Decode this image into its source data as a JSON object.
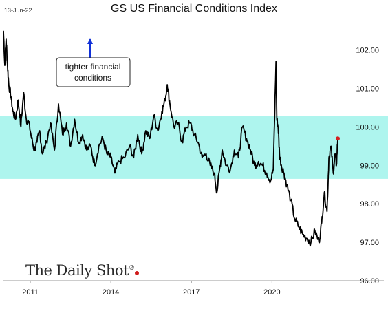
{
  "header": {
    "date": "13-Jun-22",
    "title": "GS US Financial Conditions Index"
  },
  "brand": {
    "text": "The Daily Shot",
    "mark": "®"
  },
  "colors": {
    "line": "#000000",
    "band": "#aef5ee",
    "arrow": "#1030d8",
    "last_point": "#d42020",
    "brand_dot": "#d01c1c"
  },
  "chart_data": {
    "type": "line",
    "title": "GS US Financial Conditions Index",
    "xlabel": "",
    "ylabel": "",
    "x_ticks": [
      "2011",
      "2014",
      "2017",
      "2020"
    ],
    "y_ticks": [
      "96.00",
      "97.00",
      "98.00",
      "99.00",
      "100.00",
      "101.00",
      "102.00"
    ],
    "xlim": [
      2010.0,
      2022.45
    ],
    "ylim": [
      96.0,
      102.55
    ],
    "grid": false,
    "highlight_band": {
      "y_from": 98.65,
      "y_to": 100.28
    },
    "annotation": {
      "text_lines": [
        "tighter financial",
        "conditions"
      ],
      "arrow": "up"
    },
    "last_point": {
      "x": 2022.45,
      "y": 99.7
    },
    "series": [
      {
        "x": [
          2010.0,
          2010.05,
          2010.1,
          2010.15,
          2010.2,
          2010.28,
          2010.35,
          2010.45,
          2010.55,
          2010.65,
          2010.75,
          2010.85,
          2010.95,
          2011.05,
          2011.15,
          2011.25,
          2011.35,
          2011.45,
          2011.6,
          2011.75,
          2011.9,
          2012.05,
          2012.2,
          2012.35,
          2012.5,
          2012.65,
          2012.8,
          2012.95,
          2013.1,
          2013.25,
          2013.4,
          2013.55,
          2013.7,
          2013.85,
          2014.0,
          2014.15,
          2014.3,
          2014.5,
          2014.7,
          2014.85,
          2015.0,
          2015.15,
          2015.3,
          2015.45,
          2015.6,
          2015.75,
          2015.9,
          2016.02,
          2016.1,
          2016.2,
          2016.35,
          2016.5,
          2016.65,
          2016.8,
          2016.95,
          2017.1,
          2017.25,
          2017.4,
          2017.55,
          2017.7,
          2017.85,
          2017.95,
          2018.05,
          2018.15,
          2018.3,
          2018.45,
          2018.6,
          2018.75,
          2018.9,
          2019.05,
          2019.2,
          2019.35,
          2019.5,
          2019.65,
          2019.8,
          2019.95,
          2020.05,
          2020.15,
          2020.18,
          2020.23,
          2020.28,
          2020.35,
          2020.45,
          2020.55,
          2020.7,
          2020.85,
          2021.0,
          2021.15,
          2021.3,
          2021.45,
          2021.6,
          2021.75,
          2021.85,
          2021.95,
          2022.05,
          2022.12,
          2022.2,
          2022.28,
          2022.35,
          2022.4,
          2022.45
        ],
        "y": [
          102.5,
          101.6,
          102.3,
          101.6,
          101.1,
          100.8,
          100.4,
          100.2,
          100.7,
          100.0,
          100.9,
          100.2,
          100.1,
          99.7,
          99.4,
          99.6,
          99.9,
          99.3,
          99.6,
          100.1,
          99.4,
          100.6,
          99.8,
          100.1,
          99.5,
          100.2,
          99.6,
          99.8,
          99.4,
          99.5,
          99.0,
          99.5,
          99.7,
          99.3,
          99.2,
          98.8,
          99.1,
          99.2,
          99.5,
          99.2,
          99.8,
          99.3,
          99.9,
          99.7,
          100.3,
          99.9,
          100.4,
          100.7,
          101.1,
          100.6,
          100.0,
          100.1,
          99.6,
          100.0,
          100.1,
          99.8,
          99.6,
          99.2,
          99.3,
          99.0,
          98.8,
          98.3,
          98.9,
          99.4,
          99.0,
          98.9,
          99.4,
          99.2,
          100.0,
          99.7,
          99.4,
          99.0,
          99.1,
          99.0,
          98.8,
          98.6,
          98.9,
          101.7,
          100.2,
          100.0,
          99.3,
          99.0,
          98.8,
          98.5,
          98.1,
          97.6,
          97.4,
          97.2,
          97.1,
          97.0,
          97.3,
          97.0,
          97.5,
          98.3,
          97.8,
          99.2,
          99.5,
          98.8,
          99.3,
          99.0,
          99.7
        ]
      }
    ]
  }
}
